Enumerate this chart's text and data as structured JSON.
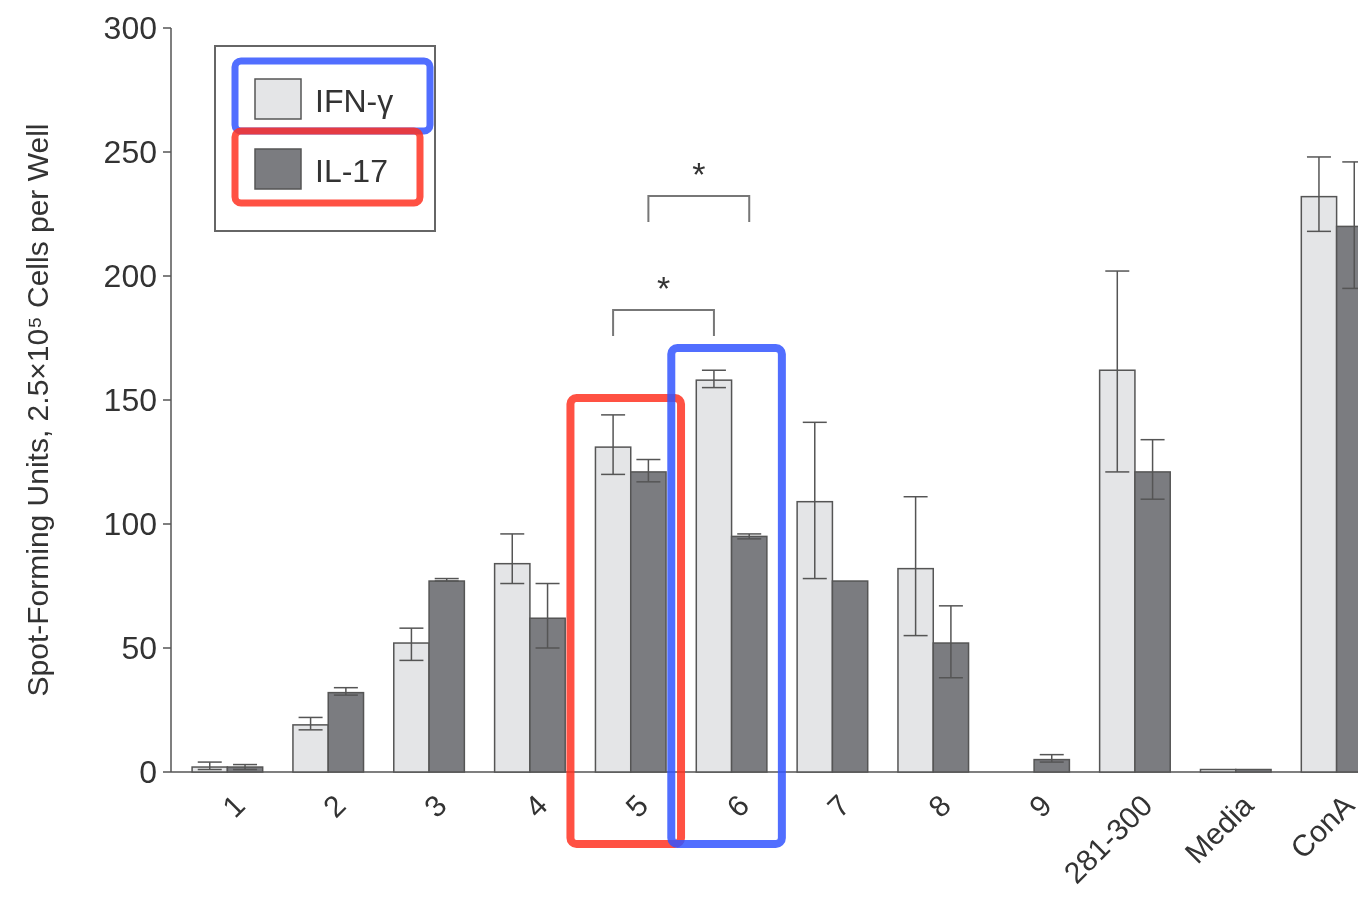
{
  "chart_data": {
    "type": "bar",
    "ylabel": "Spot-Forming Units, 2.5×10⁵ Cells per Well",
    "categories": [
      "1",
      "2",
      "3",
      "4",
      "5",
      "6",
      "7",
      "8",
      "9",
      "281-300",
      "Media",
      "ConA"
    ],
    "series": [
      {
        "name": "IFN-γ",
        "color": "#e4e5e7",
        "values": [
          2,
          19,
          52,
          84,
          131,
          158,
          109,
          82,
          0,
          162,
          1,
          232
        ],
        "errors": [
          [
            1,
            4
          ],
          [
            17,
            22
          ],
          [
            45,
            58
          ],
          [
            76,
            96
          ],
          [
            120,
            144
          ],
          [
            155,
            162
          ],
          [
            78,
            141
          ],
          [
            55,
            111
          ],
          null,
          [
            121,
            202
          ],
          null,
          [
            218,
            248
          ]
        ]
      },
      {
        "name": "IL-17",
        "color": "#7b7c80",
        "values": [
          2,
          32,
          77,
          62,
          121,
          95,
          77,
          52,
          5,
          121,
          1,
          220
        ],
        "errors": [
          [
            1,
            3
          ],
          [
            31,
            34
          ],
          [
            77,
            78
          ],
          [
            50,
            76
          ],
          [
            117,
            126
          ],
          [
            94,
            96
          ],
          null,
          [
            38,
            67
          ],
          [
            4,
            7
          ],
          [
            110,
            134
          ],
          null,
          [
            195,
            246
          ]
        ]
      }
    ],
    "ylim": [
      0,
      300
    ],
    "yticks": [
      0,
      50,
      100,
      150,
      200,
      250,
      300
    ],
    "legend": "top left",
    "annotations": [
      "*",
      "*"
    ]
  }
}
